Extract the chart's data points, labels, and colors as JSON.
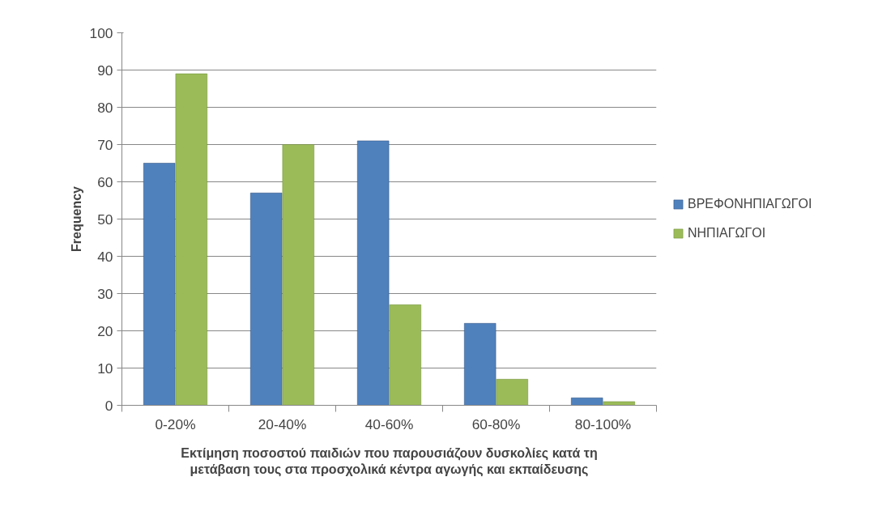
{
  "chart_data": {
    "type": "bar",
    "xlabel": "Εκτίμηση ποσοστού παιδιών που παρουσιάζουν δυσκολίες κατά τη μετάβαση τους στα προσχολικά κέντρα αγωγής και εκπαίδευσης",
    "ylabel": "Frequency",
    "categories": [
      "0-20%",
      "20-40%",
      "40-60%",
      "60-80%",
      "80-100%"
    ],
    "series": [
      {
        "name": "ΒΡΕΦΟΝΗΠΙΑΓΩΓΟΙ",
        "color": "#4f81bd",
        "values": [
          65,
          57,
          71,
          22,
          2
        ]
      },
      {
        "name": "ΝΗΠΙΑΓΩΓΟΙ",
        "color": "#9bbb59",
        "values": [
          89,
          70,
          27,
          7,
          1
        ]
      }
    ],
    "ylim": [
      0,
      100
    ],
    "yticks": [
      0,
      10,
      20,
      30,
      40,
      50,
      60,
      70,
      80,
      90,
      100
    ],
    "grid": "y",
    "legend": "right"
  }
}
